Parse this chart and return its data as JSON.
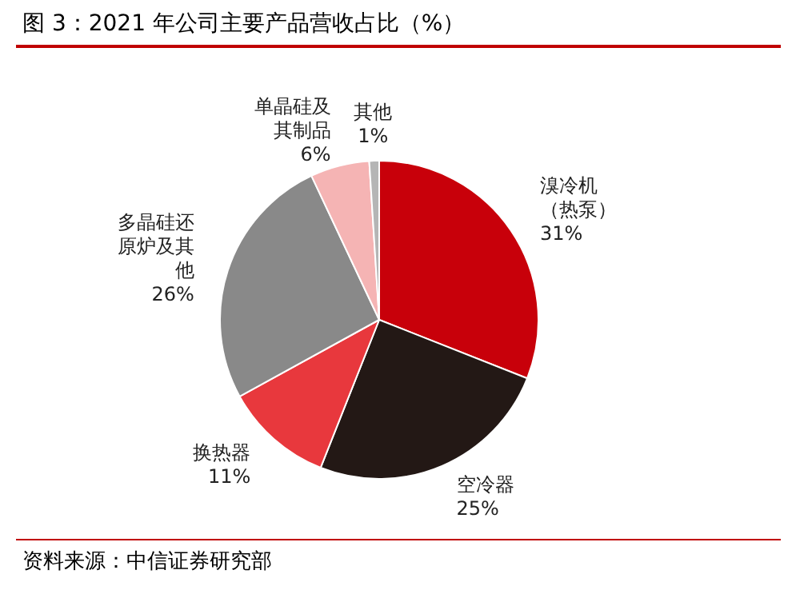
{
  "chart_data": {
    "type": "pie",
    "title": "图 3：2021 年公司主要产品营收占比（%）",
    "categories": [
      "溴冷机（热泵）",
      "空冷器",
      "换热器",
      "多晶硅还原炉及其他",
      "单晶硅及其制品",
      "其他"
    ],
    "values": [
      31,
      25,
      11,
      26,
      6,
      1
    ],
    "colors": [
      "#c8000a",
      "#231815",
      "#e8383d",
      "#898989",
      "#f5b4b4",
      "#b5b5b5"
    ],
    "value_labels": [
      "31%",
      "25%",
      "11%",
      "26%",
      "6%",
      "1%"
    ],
    "legend": false,
    "annotations": [
      "资料来源：中信证券研究部"
    ]
  }
}
